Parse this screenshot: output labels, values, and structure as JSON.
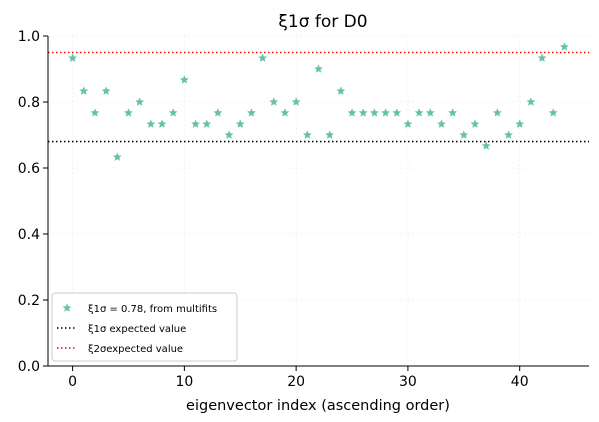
{
  "chart_data": {
    "type": "scatter",
    "title": "ξ1σ for D0",
    "xlabel": "eigenvector index (ascending order)",
    "ylabel": "",
    "xlim": [
      -2.2,
      46.2
    ],
    "ylim": [
      0.0,
      1.0
    ],
    "xticks": [
      0,
      10,
      20,
      30,
      40
    ],
    "yticks": [
      0.0,
      0.2,
      0.4,
      0.6,
      0.8,
      1.0
    ],
    "xtick_labels": [
      "0",
      "10",
      "20",
      "30",
      "40"
    ],
    "ytick_labels": [
      "0.0",
      "0.2",
      "0.4",
      "0.6",
      "0.8",
      "1.0"
    ],
    "grid": true,
    "legend_position": "lower-left",
    "series": [
      {
        "name": "ξ1σ = 0.78, from multifits",
        "marker": "star",
        "color": "#66c2a5",
        "x": [
          0,
          1,
          2,
          3,
          4,
          5,
          6,
          7,
          8,
          9,
          10,
          11,
          12,
          13,
          14,
          15,
          16,
          17,
          18,
          19,
          20,
          21,
          22,
          23,
          24,
          25,
          26,
          27,
          28,
          29,
          30,
          31,
          32,
          33,
          34,
          35,
          36,
          37,
          38,
          39,
          40,
          41,
          42,
          43,
          44
        ],
        "y": [
          0.933,
          0.833,
          0.767,
          0.833,
          0.633,
          0.767,
          0.8,
          0.733,
          0.733,
          0.767,
          0.867,
          0.733,
          0.733,
          0.767,
          0.7,
          0.733,
          0.767,
          0.933,
          0.8,
          0.767,
          0.8,
          0.7,
          0.9,
          0.7,
          0.833,
          0.767,
          0.767,
          0.767,
          0.767,
          0.767,
          0.733,
          0.767,
          0.767,
          0.733,
          0.767,
          0.7,
          0.733,
          0.667,
          0.767,
          0.7,
          0.733,
          0.8,
          0.933,
          0.767,
          0.967
        ]
      }
    ],
    "hlines": [
      {
        "name": "ξ1σ expected value",
        "y": 0.68,
        "color": "#000000",
        "style": "dotted"
      },
      {
        "name": "ξ2σexpected value",
        "y": 0.95,
        "color": "#ff0000",
        "style": "dotted"
      }
    ]
  }
}
